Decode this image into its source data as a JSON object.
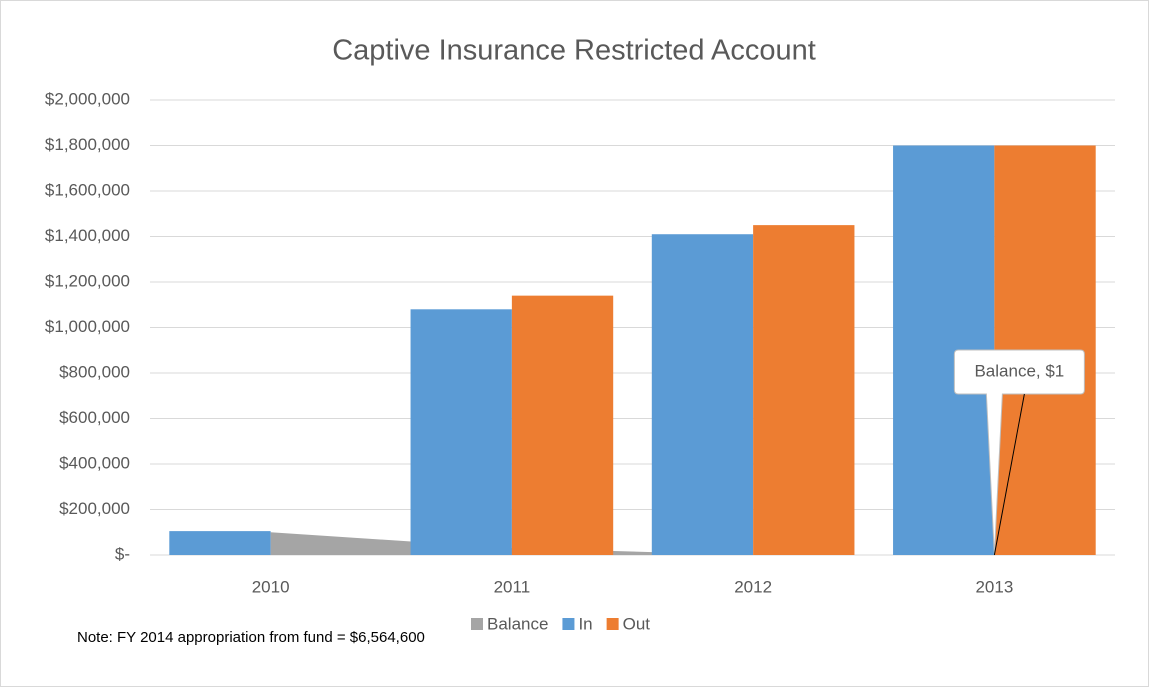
{
  "chart_data": {
    "type": "bar",
    "title": "Captive Insurance Restricted Account",
    "categories": [
      "2010",
      "2011",
      "2012",
      "2013"
    ],
    "series": [
      {
        "name": "Balance",
        "type": "area",
        "color": "#a5a5a5",
        "values": [
          100000,
          30000,
          0,
          1
        ],
        "value_labels": [
          null,
          null,
          null,
          "Balance, $1"
        ]
      },
      {
        "name": "In",
        "color": "#5b9bd5",
        "values": [
          105000,
          1080000,
          1410000,
          1800000
        ]
      },
      {
        "name": "Out",
        "color": "#ed7d31",
        "values": [
          null,
          1140000,
          1450000,
          1800000
        ]
      }
    ],
    "ylim": [
      0,
      2000000
    ],
    "yticks": [
      {
        "value": 0,
        "label": "$-"
      },
      {
        "value": 200000,
        "label": "$200,000"
      },
      {
        "value": 400000,
        "label": "$400,000"
      },
      {
        "value": 600000,
        "label": "$600,000"
      },
      {
        "value": 800000,
        "label": "$800,000"
      },
      {
        "value": 1000000,
        "label": "$1,000,000"
      },
      {
        "value": 1200000,
        "label": "$1,200,000"
      },
      {
        "value": 1400000,
        "label": "$1,400,000"
      },
      {
        "value": 1600000,
        "label": "$1,600,000"
      },
      {
        "value": 1800000,
        "label": "$1,800,000"
      },
      {
        "value": 2000000,
        "label": "$2,000,000"
      }
    ],
    "grid": true,
    "legend": "bottom",
    "note": "Note: FY 2014 appropriation from fund = $6,564,600"
  }
}
